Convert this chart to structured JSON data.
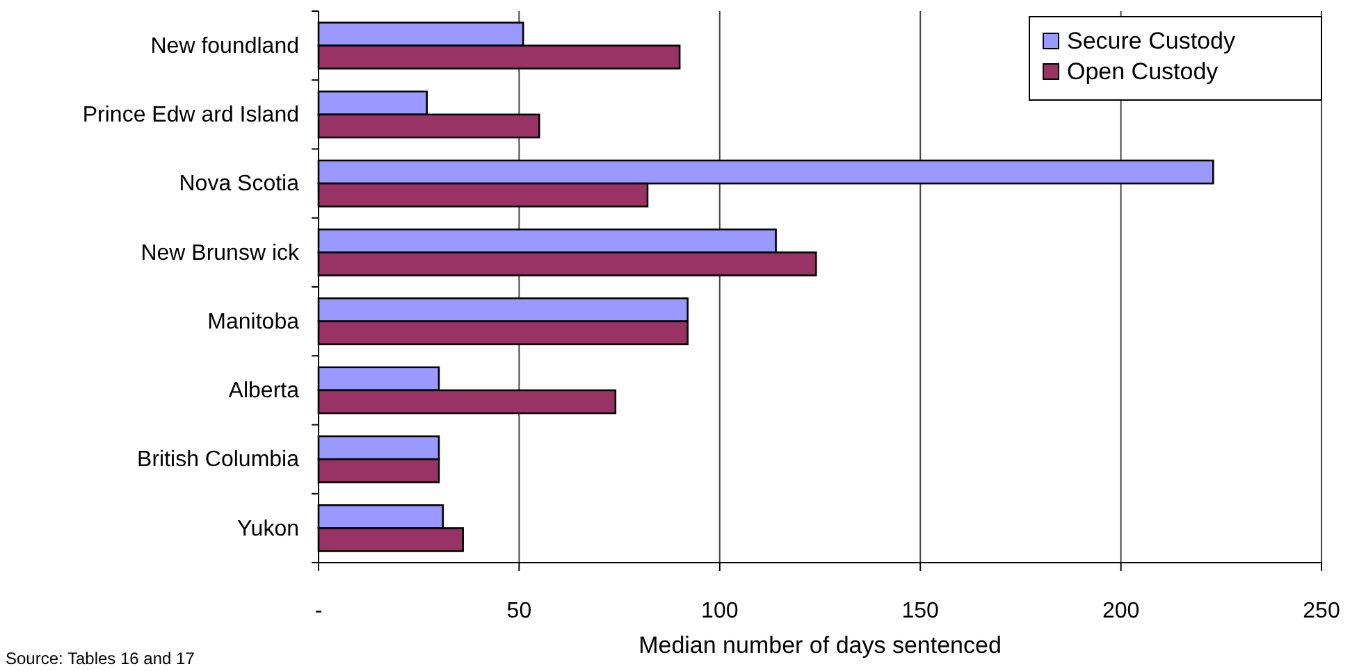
{
  "chart_data": {
    "type": "bar",
    "orientation": "horizontal",
    "xlabel": "Median number of days sentenced",
    "categories": [
      "New foundland",
      "Prince Edw ard Island",
      "Nova Scotia",
      "New Brunsw ick",
      "Manitoba",
      "Alberta",
      "British Columbia",
      "Yukon"
    ],
    "series": [
      {
        "name": "Secure Custody",
        "color": "#9999ff",
        "values": [
          51,
          27,
          223,
          114,
          92,
          30,
          30,
          31
        ]
      },
      {
        "name": "Open Custody",
        "color": "#993366",
        "values": [
          90,
          55,
          82,
          124,
          92,
          74,
          30,
          36
        ]
      }
    ],
    "xlim": [
      0,
      250
    ],
    "xticks": [
      {
        "value": 0,
        "label": "-"
      },
      50,
      100,
      150,
      200,
      250
    ],
    "grid": "x",
    "legend": "top right",
    "annotations": [
      "Source: Tables 16 and 17"
    ]
  }
}
